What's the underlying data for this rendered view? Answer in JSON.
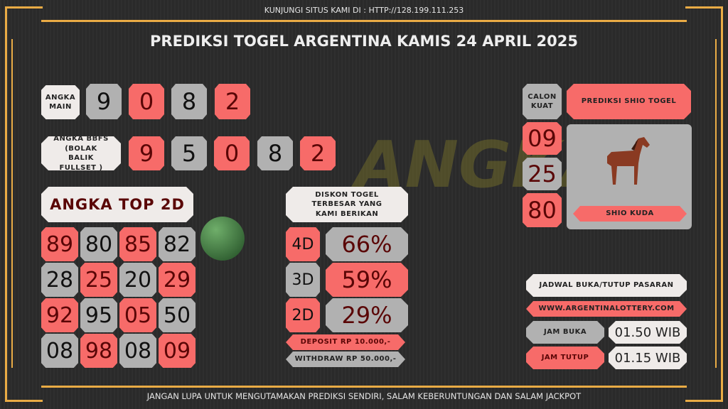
{
  "header": {
    "visit": "KUNJUNGI SITUS KAMI DI : HTTP://128.199.111.253",
    "title": "PREDIKSI TOGEL ARGENTINA KAMIS 24 APRIL 2025"
  },
  "angka_main": {
    "label": "ANGKA MAIN",
    "digits": [
      "9",
      "0",
      "8",
      "2"
    ]
  },
  "bbfs": {
    "label": "ANGKA BBFS (BOLAK BALIK FULLSET )",
    "digits": [
      "9",
      "5",
      "0",
      "8",
      "2"
    ]
  },
  "top2d": {
    "label": "ANGKA TOP 2D",
    "rows": [
      [
        "89",
        "80",
        "85",
        "82"
      ],
      [
        "28",
        "25",
        "20",
        "29"
      ],
      [
        "92",
        "95",
        "05",
        "50"
      ],
      [
        "08",
        "98",
        "08",
        "09"
      ]
    ]
  },
  "diskon": {
    "label": "DISKON TOGEL TERBESAR YANG KAMI BERIKAN",
    "items": [
      {
        "type": "4D",
        "pct": "66%"
      },
      {
        "type": "3D",
        "pct": "59%"
      },
      {
        "type": "2D",
        "pct": "29%"
      }
    ],
    "deposit": "DEPOSIT RP 10.000,-",
    "withdraw": "WITHDRAW RP 50.000,-"
  },
  "shio": {
    "calon_label": "CALON KUAT",
    "title": "PREDIKSI SHIO TOGEL",
    "numbers": [
      "09",
      "25",
      "80"
    ],
    "name": "SHIO KUDA",
    "icon": "horse-icon"
  },
  "jadwal": {
    "title": "JADWAL BUKA/TUTUP PASARAN",
    "url": "WWW.ARGENTINALOTTERY.COM",
    "buka_label": "JAM BUKA",
    "buka": "01.50 WIB",
    "tutup_label": "JAM TUTUP",
    "tutup": "01.15 WIB"
  },
  "footer": "JANGAN LUPA UNTUK MENGUTAMAKAN PREDIKSI SENDIRI, SALAM KEBERUNTUNGAN DAN SALAM JACKPOT",
  "colors": {
    "salmon": "#f76b69",
    "gray": "#b1b1b1",
    "white": "#efebe9",
    "gold": "#e9ab45",
    "background": "#2b2b2b"
  }
}
